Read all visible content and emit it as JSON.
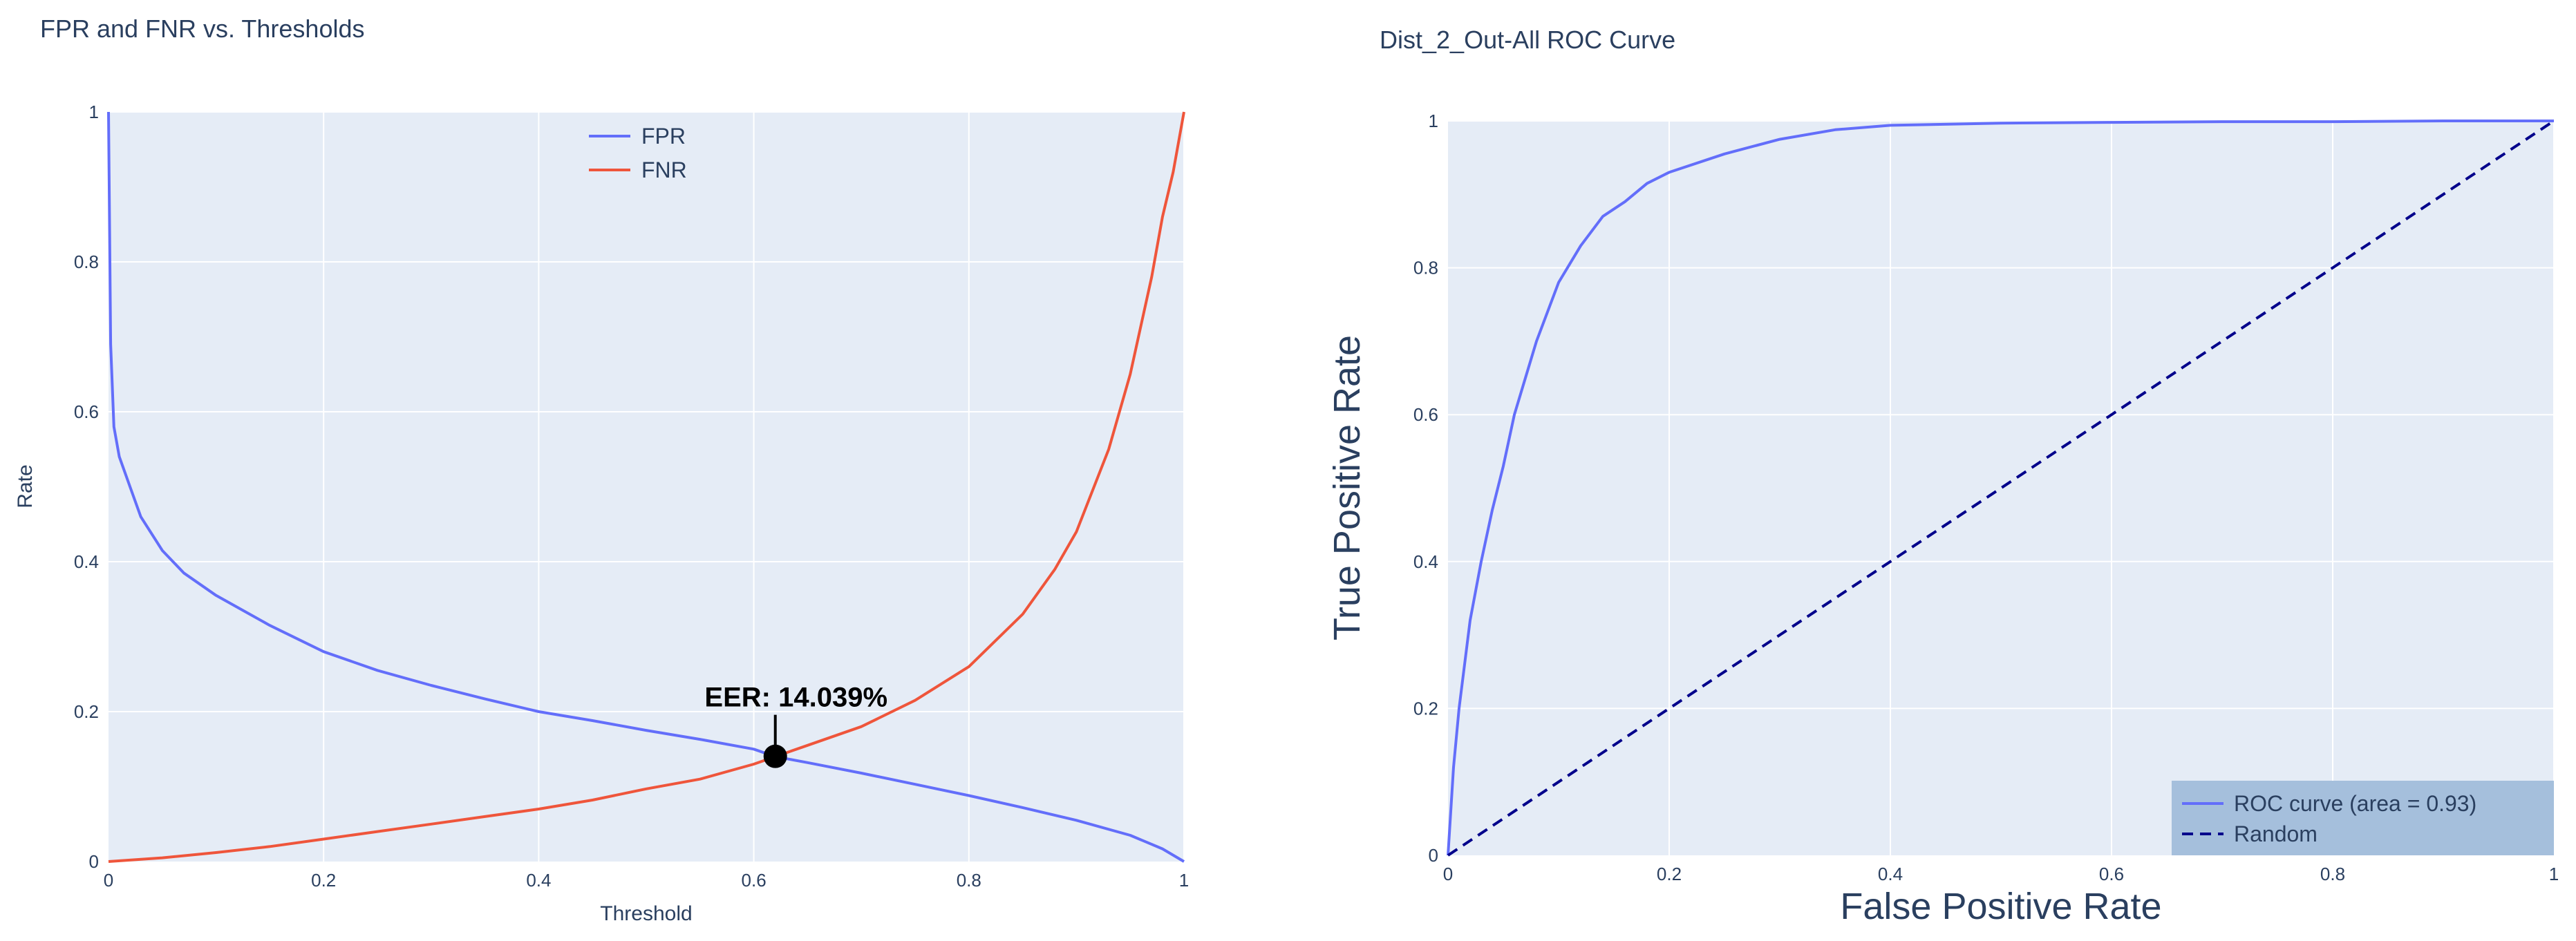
{
  "chart_data": [
    {
      "type": "line",
      "title": "FPR and FNR vs. Thresholds",
      "xlabel": "Threshold",
      "ylabel": "Rate",
      "xlim": [
        0,
        1
      ],
      "ylim": [
        0,
        1
      ],
      "x_ticks": [
        "0",
        "0.2",
        "0.4",
        "0.6",
        "0.8",
        "1"
      ],
      "y_ticks": [
        "0",
        "0.2",
        "0.4",
        "0.6",
        "0.8",
        "1"
      ],
      "grid": true,
      "legend_position": "top-center",
      "series": [
        {
          "name": "FPR",
          "color": "#636efa",
          "x": [
            0,
            0.002,
            0.005,
            0.01,
            0.02,
            0.03,
            0.05,
            0.07,
            0.1,
            0.15,
            0.2,
            0.25,
            0.3,
            0.35,
            0.4,
            0.45,
            0.5,
            0.55,
            0.6,
            0.62,
            0.65,
            0.7,
            0.75,
            0.8,
            0.85,
            0.9,
            0.95,
            0.98,
            1.0
          ],
          "y": [
            1.0,
            0.69,
            0.58,
            0.54,
            0.5,
            0.46,
            0.415,
            0.385,
            0.355,
            0.315,
            0.28,
            0.255,
            0.235,
            0.217,
            0.2,
            0.188,
            0.175,
            0.163,
            0.15,
            0.14,
            0.132,
            0.118,
            0.103,
            0.088,
            0.072,
            0.055,
            0.035,
            0.017,
            0.0
          ]
        },
        {
          "name": "FNR",
          "color": "#ef553b",
          "x": [
            0,
            0.05,
            0.1,
            0.15,
            0.2,
            0.25,
            0.3,
            0.35,
            0.4,
            0.45,
            0.5,
            0.55,
            0.6,
            0.62,
            0.65,
            0.7,
            0.75,
            0.8,
            0.85,
            0.88,
            0.9,
            0.93,
            0.95,
            0.97,
            0.98,
            0.99,
            1.0
          ],
          "y": [
            0.0,
            0.005,
            0.012,
            0.02,
            0.03,
            0.04,
            0.05,
            0.06,
            0.07,
            0.082,
            0.097,
            0.11,
            0.13,
            0.14,
            0.155,
            0.18,
            0.215,
            0.26,
            0.33,
            0.39,
            0.44,
            0.55,
            0.65,
            0.78,
            0.86,
            0.92,
            1.0
          ]
        }
      ],
      "annotation": {
        "text": "EER: 14.039%",
        "x": 0.62,
        "y": 0.14039
      }
    },
    {
      "type": "line",
      "title": "Dist_2_Out-All ROC Curve",
      "xlabel": "False Positive Rate",
      "ylabel": "True Positive Rate",
      "xlim": [
        0,
        1
      ],
      "ylim": [
        0,
        1
      ],
      "x_ticks": [
        "0",
        "0.2",
        "0.4",
        "0.6",
        "0.8",
        "1"
      ],
      "y_ticks": [
        "0",
        "0.2",
        "0.4",
        "0.6",
        "0.8",
        "1"
      ],
      "grid": true,
      "legend_position": "bottom-right",
      "series": [
        {
          "name": "ROC curve (area = 0.93)",
          "color": "#636efa",
          "dash": "solid",
          "x": [
            0,
            0.005,
            0.01,
            0.02,
            0.03,
            0.04,
            0.05,
            0.06,
            0.07,
            0.08,
            0.1,
            0.12,
            0.14,
            0.16,
            0.18,
            0.2,
            0.25,
            0.3,
            0.35,
            0.4,
            0.5,
            0.6,
            0.7,
            0.8,
            0.9,
            1.0
          ],
          "y": [
            0,
            0.12,
            0.2,
            0.32,
            0.4,
            0.47,
            0.53,
            0.6,
            0.65,
            0.7,
            0.78,
            0.83,
            0.87,
            0.89,
            0.915,
            0.93,
            0.955,
            0.975,
            0.988,
            0.994,
            0.997,
            0.998,
            0.999,
            0.999,
            1.0,
            1.0
          ]
        },
        {
          "name": "Random",
          "color": "#00008b",
          "dash": "dash",
          "x": [
            0,
            1
          ],
          "y": [
            0,
            1
          ]
        }
      ]
    }
  ]
}
